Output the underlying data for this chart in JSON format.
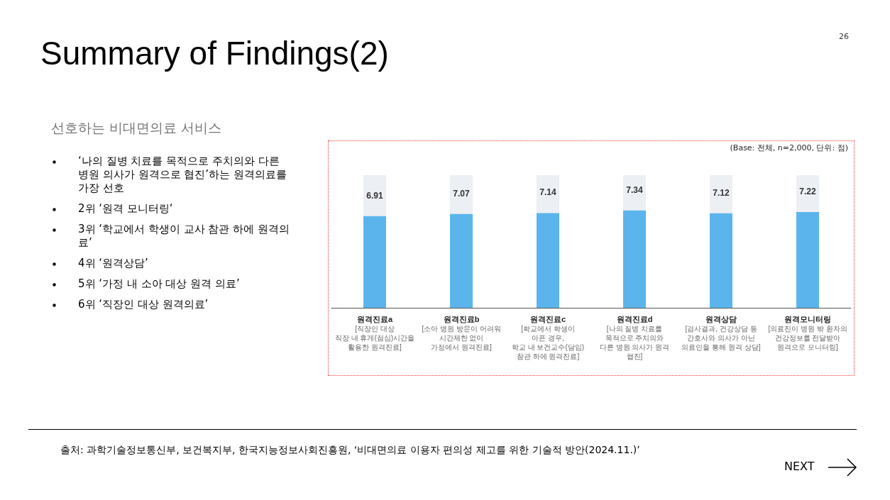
{
  "chart_data": {
    "type": "bar",
    "title": "Summary of Findings(2)",
    "subtitle": "선호하는 비대면의료 서비스",
    "categories": [
      "원격진료a\n[직장인 대상\n직장 내 휴게(점심)시간을\n활용한 원격진료]",
      "원격진료b\n[소아 병원 방문이 어려워\n시간제한 없이\n가정에서 원격진료]",
      "원격진료c\n[학교에서 학생이\n아픈 경우,\n학교 내 보건교수(담임)\n참관 하에 원격진료]",
      "원격진료d\n[나의 질병 치료를\n목적으로 주치의와\n다른 병원 의사가 원격\n협진]",
      "원격상담\n[검사결과, 건강상담 등\n간호사와 의사가 아닌\n의료인을 통해 원격 상담]",
      "원격모니터링\n[의료진이 병원 밖 환자의\n건강정보를 전달받아\n원격으로 모니터링]"
    ],
    "values": [
      6.91,
      7.07,
      7.14,
      7.34,
      7.12,
      7.22
    ],
    "color": "#5bb5ec",
    "ylim": [
      0,
      10
    ],
    "data_labels": true,
    "tick_labels": "x",
    "annotations": [
      "(Base: 전체, n=2,000, 단위: 점)",
      "‘나의 질병 치료를 목적으로 주치의와 다른 병원 의사가 원격으로 협진’하는 원격의료를 가장 선호",
      "2위 ‘원격 모니터링‘",
      "3위 ‘학교에서 학생이 교사 참관 하에 원격의료’",
      "4위 ‘원격상담’",
      "5위 ‘가정 내 소아 대상 원격 의료’",
      "6위 ‘직장인 대상 원격의료’",
      "출처: 과학기술정보통신부, 보건복지부, 한국지능정보사회진흥원, ‘비대면의료 이용자 편의성 제고를 위한 기술적 방안(2024.11.)’",
      "26",
      "NEXT"
    ]
  }
}
